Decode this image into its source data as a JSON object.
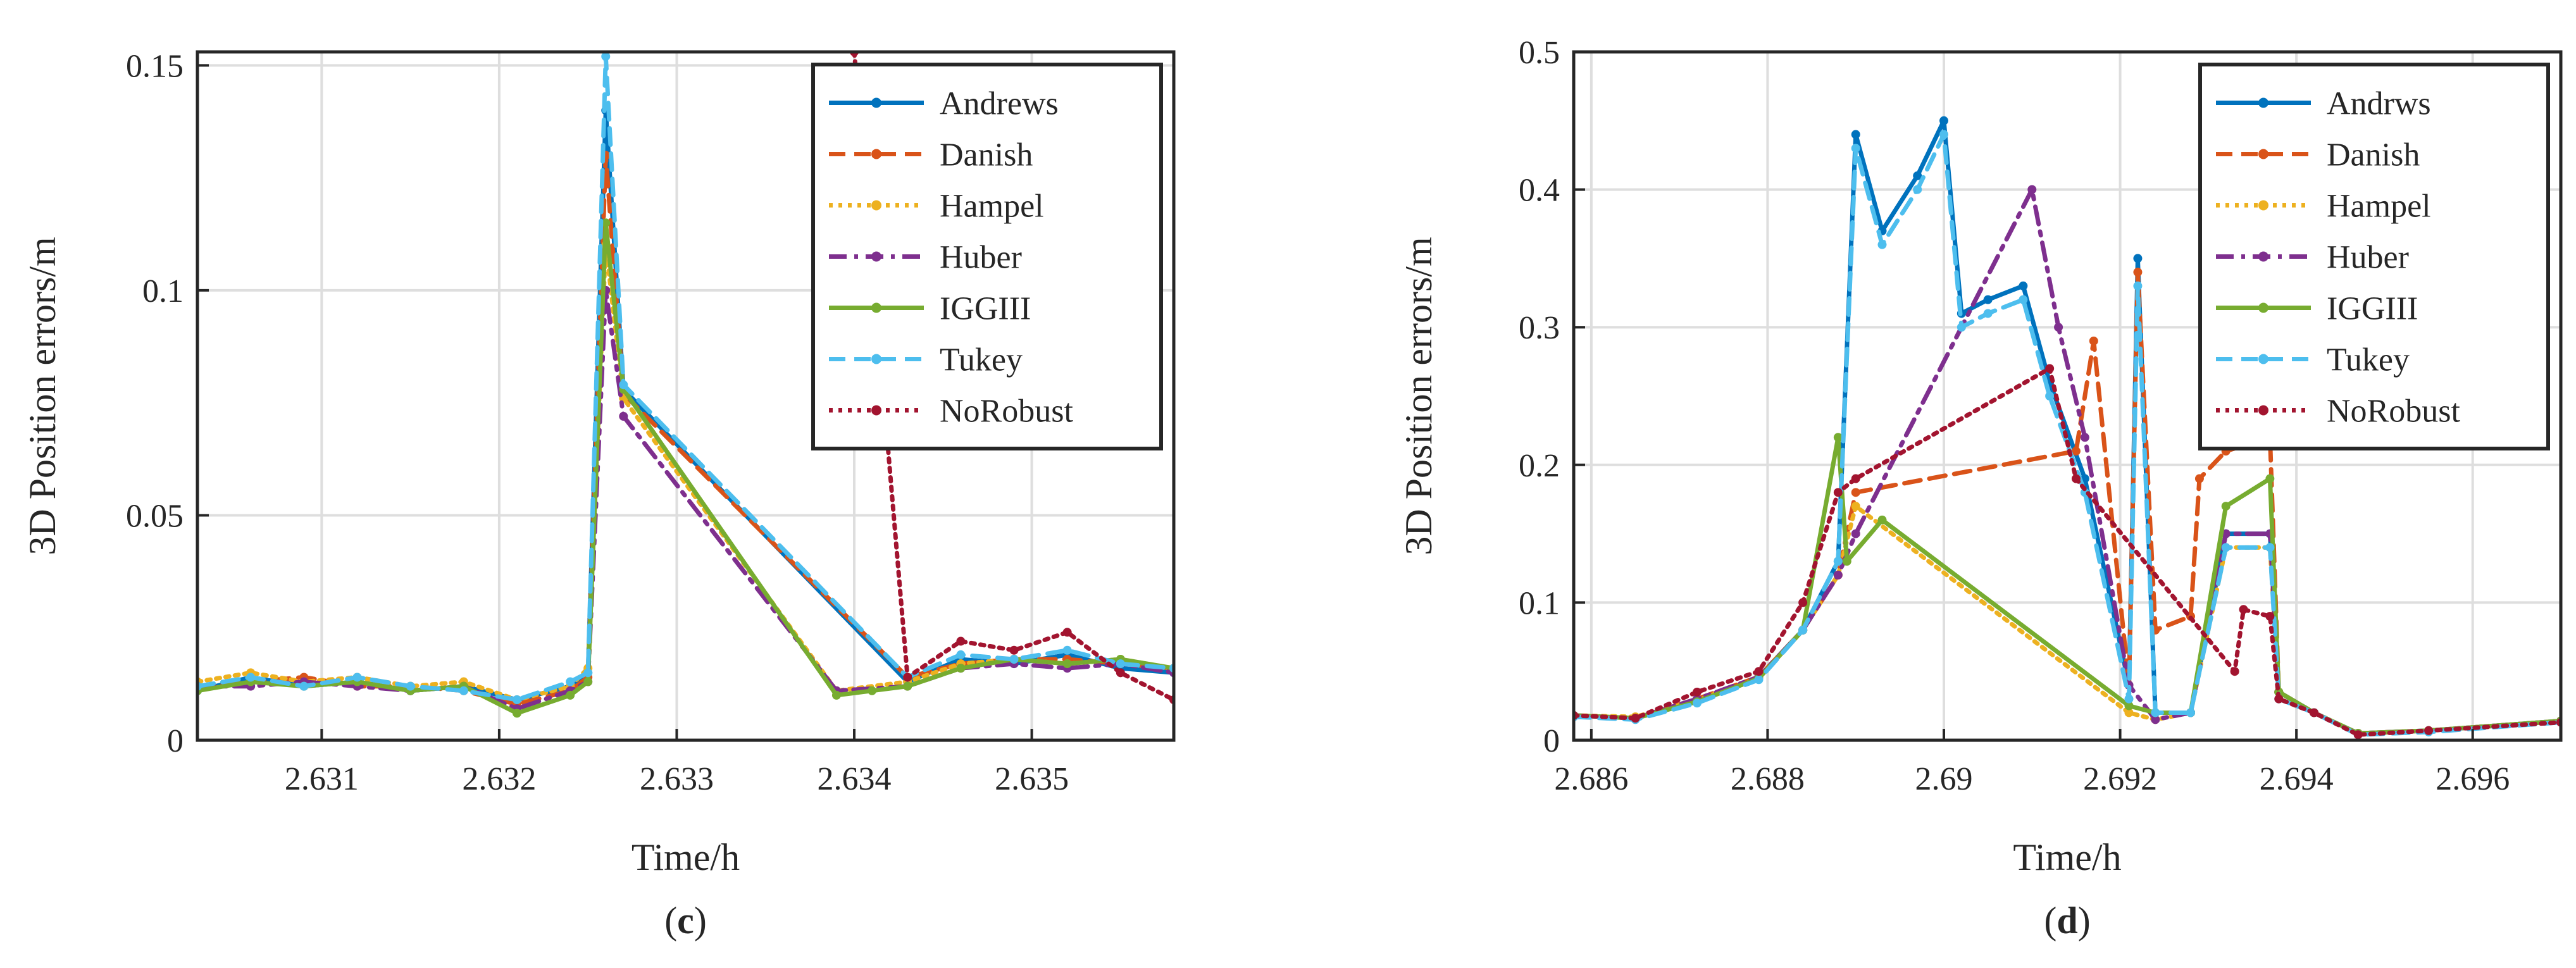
{
  "chart_data": [
    {
      "type": "line",
      "panel": "c",
      "caption_prefix": "(",
      "caption_letter": "c",
      "caption_suffix": ")",
      "xlabel": "Time/h",
      "ylabel": "3D Position errors/m",
      "xlim": [
        2.6303,
        2.6358
      ],
      "ylim": [
        0,
        0.153
      ],
      "xticks": [
        2.631,
        2.632,
        2.633,
        2.634,
        2.635
      ],
      "xtick_labels": [
        "2.631",
        "2.632",
        "2.633",
        "2.634",
        "2.635"
      ],
      "yticks": [
        0,
        0.05,
        0.1,
        0.15
      ],
      "ytick_labels": [
        "0",
        "0.05",
        "0.1",
        "0.15"
      ],
      "grid": true,
      "legend_position": "top-right",
      "series": [
        {
          "name": "Andrews",
          "color": "#0072BD",
          "dash": "solid",
          "x": [
            2.6303,
            2.6306,
            2.6309,
            2.6312,
            2.6315,
            2.6318,
            2.6321,
            2.6324,
            2.6325,
            2.6326,
            2.6327,
            2.6343,
            2.6346,
            2.6349,
            2.6352,
            2.6355,
            2.6358
          ],
          "y": [
            0.011,
            0.014,
            0.012,
            0.013,
            0.011,
            0.012,
            0.009,
            0.012,
            0.015,
            0.14,
            0.078,
            0.013,
            0.018,
            0.017,
            0.019,
            0.016,
            0.015
          ]
        },
        {
          "name": "Danish",
          "color": "#D95319",
          "dash": "dashed",
          "x": [
            2.6303,
            2.6306,
            2.6309,
            2.6312,
            2.6315,
            2.6318,
            2.6321,
            2.6324,
            2.6325,
            2.6326,
            2.6327,
            2.6343,
            2.6346,
            2.6349,
            2.6352,
            2.6355,
            2.6358
          ],
          "y": [
            0.012,
            0.013,
            0.014,
            0.012,
            0.012,
            0.011,
            0.008,
            0.011,
            0.014,
            0.13,
            0.077,
            0.014,
            0.017,
            0.018,
            0.018,
            0.017,
            0.016
          ]
        },
        {
          "name": "Hampel",
          "color": "#EDB120",
          "dash": "dotted",
          "x": [
            2.6303,
            2.6306,
            2.6309,
            2.6312,
            2.6315,
            2.6318,
            2.6321,
            2.6324,
            2.6325,
            2.6326,
            2.6327,
            2.6339,
            2.6343,
            2.6346,
            2.6349,
            2.6352,
            2.6355,
            2.6358
          ],
          "y": [
            0.013,
            0.015,
            0.013,
            0.014,
            0.012,
            0.013,
            0.009,
            0.012,
            0.016,
            0.11,
            0.076,
            0.011,
            0.013,
            0.017,
            0.018,
            0.017,
            0.018,
            0.016
          ]
        },
        {
          "name": "Huber",
          "color": "#7E2F8E",
          "dash": "dashdot",
          "x": [
            2.6303,
            2.6306,
            2.6309,
            2.6312,
            2.6315,
            2.6318,
            2.6321,
            2.6324,
            2.6325,
            2.6326,
            2.6327,
            2.6339,
            2.6343,
            2.6346,
            2.6349,
            2.6352,
            2.6355,
            2.6358
          ],
          "y": [
            0.012,
            0.012,
            0.013,
            0.012,
            0.011,
            0.012,
            0.007,
            0.011,
            0.013,
            0.1,
            0.072,
            0.011,
            0.012,
            0.016,
            0.017,
            0.016,
            0.017,
            0.015
          ]
        },
        {
          "name": "IGGIII",
          "color": "#77AC30",
          "dash": "solid",
          "x": [
            2.6303,
            2.6306,
            2.6309,
            2.6312,
            2.6315,
            2.6318,
            2.6321,
            2.6324,
            2.6325,
            2.6326,
            2.6327,
            2.6339,
            2.6341,
            2.6343,
            2.6346,
            2.6349,
            2.6352,
            2.6355,
            2.6358
          ],
          "y": [
            0.011,
            0.013,
            0.012,
            0.013,
            0.011,
            0.012,
            0.006,
            0.01,
            0.013,
            0.115,
            0.078,
            0.01,
            0.011,
            0.012,
            0.016,
            0.018,
            0.017,
            0.018,
            0.016
          ]
        },
        {
          "name": "Tukey",
          "color": "#4DBEEE",
          "dash": "dashed",
          "x": [
            2.6303,
            2.6306,
            2.6309,
            2.6312,
            2.6315,
            2.6318,
            2.6321,
            2.6324,
            2.6325,
            2.6326,
            2.6327,
            2.6343,
            2.6346,
            2.6349,
            2.6352,
            2.6355,
            2.6358
          ],
          "y": [
            0.012,
            0.014,
            0.012,
            0.014,
            0.012,
            0.011,
            0.009,
            0.013,
            0.015,
            0.152,
            0.079,
            0.014,
            0.019,
            0.018,
            0.02,
            0.017,
            0.016
          ]
        },
        {
          "name": "NoRobust",
          "color": "#A2142F",
          "dash": "dotted",
          "x": [
            2.634,
            2.6343,
            2.6346,
            2.6349,
            2.6352,
            2.6355,
            2.6358
          ],
          "y": [
            0.153,
            0.014,
            0.022,
            0.02,
            0.024,
            0.015,
            0.009
          ]
        }
      ]
    },
    {
      "type": "line",
      "panel": "d",
      "caption_prefix": "(",
      "caption_letter": "d",
      "caption_suffix": ")",
      "xlabel": "Time/h",
      "ylabel": "3D Position errors/m",
      "xlim": [
        2.6858,
        2.697
      ],
      "ylim": [
        0,
        0.5
      ],
      "xticks": [
        2.686,
        2.688,
        2.69,
        2.692,
        2.694,
        2.696
      ],
      "xtick_labels": [
        "2.686",
        "2.688",
        "2.69",
        "2.692",
        "2.694",
        "2.696"
      ],
      "yticks": [
        0,
        0.1,
        0.2,
        0.3,
        0.4,
        0.5
      ],
      "ytick_labels": [
        "0",
        "0.1",
        "0.2",
        "0.3",
        "0.4",
        "0.5"
      ],
      "grid": true,
      "legend_position": "top-right",
      "series": [
        {
          "name": "Andrws",
          "color": "#0072BD",
          "dash": "solid",
          "x": [
            2.6858,
            2.6865,
            2.6872,
            2.6879,
            2.6884,
            2.6888,
            2.689,
            2.6893,
            2.6897,
            2.69,
            2.6902,
            2.6905,
            2.6909,
            2.6912,
            2.6916,
            2.6921,
            2.6922,
            2.6924,
            2.6928,
            2.6932,
            2.6937,
            2.6938,
            2.6942,
            2.6947,
            2.6955,
            2.697
          ],
          "y": [
            0.018,
            0.016,
            0.028,
            0.045,
            0.08,
            0.13,
            0.44,
            0.37,
            0.41,
            0.45,
            0.31,
            0.32,
            0.33,
            0.26,
            0.19,
            0.04,
            0.35,
            0.02,
            0.02,
            0.15,
            0.15,
            0.035,
            0.02,
            0.005,
            0.007,
            0.014
          ]
        },
        {
          "name": "Danish",
          "color": "#D95319",
          "dash": "dashed",
          "x": [
            2.6858,
            2.6865,
            2.6872,
            2.6879,
            2.6884,
            2.6888,
            2.689,
            2.6915,
            2.6917,
            2.6921,
            2.6922,
            2.6924,
            2.6928,
            2.6929,
            2.6932,
            2.6937,
            2.6938,
            2.6942,
            2.6947,
            2.6955,
            2.697
          ],
          "y": [
            0.018,
            0.016,
            0.03,
            0.046,
            0.08,
            0.12,
            0.18,
            0.21,
            0.29,
            0.04,
            0.34,
            0.08,
            0.09,
            0.19,
            0.21,
            0.22,
            0.035,
            0.02,
            0.005,
            0.007,
            0.014
          ]
        },
        {
          "name": "Hampel",
          "color": "#EDB120",
          "dash": "dotted",
          "x": [
            2.6858,
            2.6865,
            2.6872,
            2.6879,
            2.6884,
            2.6888,
            2.689,
            2.6921,
            2.6924,
            2.6928,
            2.6932,
            2.6937,
            2.6938,
            2.6942,
            2.6947,
            2.6955,
            2.697
          ],
          "y": [
            0.018,
            0.017,
            0.029,
            0.045,
            0.08,
            0.12,
            0.17,
            0.02,
            0.015,
            0.02,
            0.14,
            0.14,
            0.035,
            0.02,
            0.005,
            0.007,
            0.014
          ]
        },
        {
          "name": "Huber",
          "color": "#7E2F8E",
          "dash": "dashdot",
          "x": [
            2.6858,
            2.6865,
            2.6872,
            2.6879,
            2.6884,
            2.6888,
            2.689,
            2.691,
            2.6913,
            2.6916,
            2.6921,
            2.6924,
            2.6928,
            2.6932,
            2.6937,
            2.6938,
            2.6942,
            2.6947,
            2.6955,
            2.697
          ],
          "y": [
            0.018,
            0.016,
            0.03,
            0.046,
            0.08,
            0.12,
            0.15,
            0.4,
            0.3,
            0.22,
            0.04,
            0.015,
            0.02,
            0.15,
            0.15,
            0.035,
            0.02,
            0.005,
            0.007,
            0.014
          ]
        },
        {
          "name": "IGGIII",
          "color": "#77AC30",
          "dash": "solid",
          "x": [
            2.6858,
            2.6865,
            2.6872,
            2.6879,
            2.6884,
            2.6888,
            2.6889,
            2.6893,
            2.6921,
            2.6924,
            2.6928,
            2.6932,
            2.6937,
            2.6938,
            2.6942,
            2.6947,
            2.6955,
            2.697
          ],
          "y": [
            0.018,
            0.016,
            0.028,
            0.045,
            0.08,
            0.22,
            0.13,
            0.16,
            0.025,
            0.02,
            0.02,
            0.17,
            0.19,
            0.035,
            0.02,
            0.005,
            0.007,
            0.014
          ]
        },
        {
          "name": "Tukey",
          "color": "#4DBEEE",
          "dash": "dashed",
          "x": [
            2.6858,
            2.6865,
            2.6872,
            2.6879,
            2.6884,
            2.6888,
            2.689,
            2.6893,
            2.6897,
            2.69,
            2.6902,
            2.6905,
            2.6909,
            2.6912,
            2.6916,
            2.6921,
            2.6922,
            2.6924,
            2.6928,
            2.6932,
            2.6937,
            2.6938,
            2.6942,
            2.6947,
            2.6955,
            2.697
          ],
          "y": [
            0.017,
            0.015,
            0.027,
            0.044,
            0.08,
            0.13,
            0.43,
            0.36,
            0.4,
            0.44,
            0.3,
            0.31,
            0.32,
            0.25,
            0.18,
            0.03,
            0.33,
            0.02,
            0.02,
            0.14,
            0.14,
            0.03,
            0.02,
            0.004,
            0.006,
            0.013
          ]
        },
        {
          "name": "NoRobust",
          "color": "#A2142F",
          "dash": "dotted",
          "x": [
            2.6858,
            2.6865,
            2.6872,
            2.6879,
            2.6884,
            2.6888,
            2.689,
            2.6912,
            2.6915,
            2.6933,
            2.6934,
            2.6937,
            2.6938,
            2.6942,
            2.6947,
            2.6955,
            2.697
          ],
          "y": [
            0.018,
            0.016,
            0.035,
            0.05,
            0.1,
            0.18,
            0.19,
            0.27,
            0.19,
            0.05,
            0.095,
            0.09,
            0.03,
            0.02,
            0.004,
            0.007,
            0.013
          ]
        }
      ]
    }
  ]
}
